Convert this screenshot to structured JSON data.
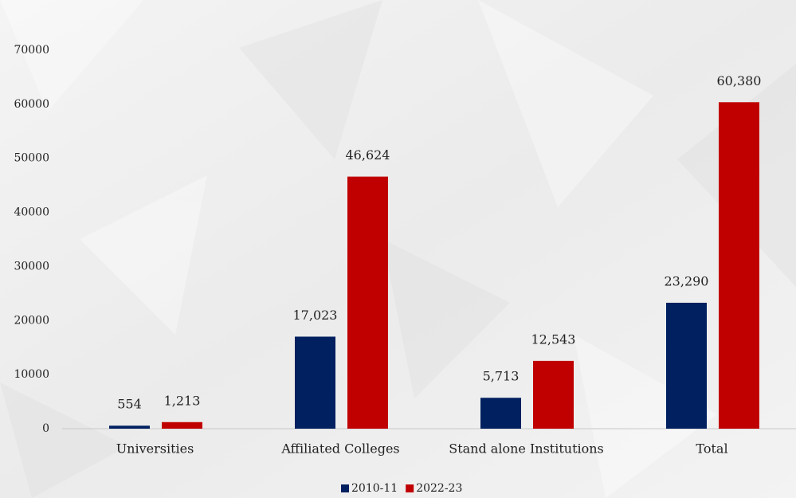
{
  "chart_data": {
    "type": "bar",
    "categories": [
      "Universities",
      "Affiliated Colleges",
      "Stand alone Institutions",
      "Total"
    ],
    "series": [
      {
        "name": "2010-11",
        "color": "#002060",
        "values": [
          554,
          17023,
          5713,
          23290
        ],
        "value_labels": [
          "554",
          "17,023",
          "5,713",
          "23,290"
        ]
      },
      {
        "name": "2022-23",
        "color": "#c00000",
        "values": [
          1213,
          46624,
          12543,
          60380
        ],
        "value_labels": [
          "1,213",
          "46,624",
          "12,543",
          "60,380"
        ]
      }
    ],
    "ylim": [
      0,
      70000
    ],
    "yticks": [
      0,
      10000,
      20000,
      30000,
      40000,
      50000,
      60000,
      70000
    ],
    "grid": false,
    "legend": "bottom"
  }
}
